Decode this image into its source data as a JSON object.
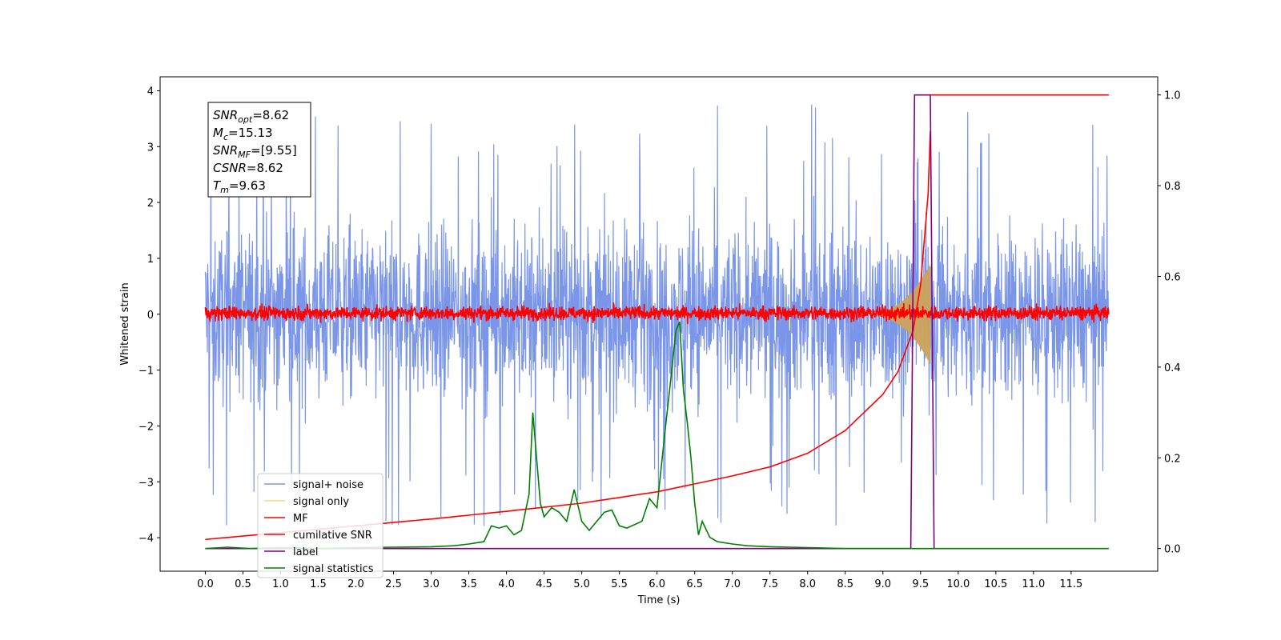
{
  "chart_data": {
    "type": "line",
    "xlabel": "Time (s)",
    "ylabel_left": "Whitened strain",
    "ylabel_right": "",
    "xlim": [
      -0.6,
      12.65
    ],
    "ylim_left": [
      -4.6,
      4.25
    ],
    "ylim_right": [
      -0.05,
      1.04
    ],
    "x_ticks": [
      "0.0",
      "0.5",
      "1.0",
      "1.5",
      "2.0",
      "2.5",
      "3.0",
      "3.5",
      "4.0",
      "4.5",
      "5.0",
      "5.5",
      "6.0",
      "6.5",
      "7.0",
      "7.5",
      "8.0",
      "8.5",
      "9.0",
      "9.5",
      "10.0",
      "10.5",
      "11.0",
      "11.5"
    ],
    "y_ticks_left": [
      "4",
      "3",
      "2",
      "1",
      "0",
      "−1",
      "−2",
      "−3",
      "−4"
    ],
    "y_ticks_right": [
      "1.0",
      "0.8",
      "0.6",
      "0.4",
      "0.2",
      "0.0"
    ],
    "grid": false,
    "annotation": {
      "lines": [
        {
          "main": "SNR",
          "sub": "opt",
          "value": "=8.62"
        },
        {
          "main": "M",
          "sub": "c",
          "value": "=15.13"
        },
        {
          "main": "SNR",
          "sub": "MF",
          "value": "=[9.55]"
        },
        {
          "main": "CSNR",
          "sub": "",
          "value": "=8.62"
        },
        {
          "main": "T",
          "sub": "m",
          "value": "=9.63"
        }
      ]
    },
    "legend": {
      "placement": "lower-left",
      "entries": [
        "signal+ noise",
        "signal only",
        "MF",
        "cumilative SNR",
        "label",
        "signal statistics"
      ]
    },
    "series": [
      {
        "name": "signal+ noise",
        "axis": "left",
        "color": "#7b96e8",
        "kind": "noise",
        "x_range": [
          0,
          12
        ],
        "amplitude": 1.8
      },
      {
        "name": "signal only",
        "axis": "left",
        "color": "#f5c842",
        "kind": "chirp",
        "x_range": [
          8.6,
          9.63
        ],
        "peak": 0.9
      },
      {
        "name": "MF",
        "axis": "left",
        "color": "#ff0000",
        "kind": "noise",
        "x_range": [
          0,
          12
        ],
        "amplitude": 0.15
      },
      {
        "name": "cumilative SNR",
        "axis": "right",
        "color": "#ff0000",
        "x": [
          0,
          1,
          2,
          3,
          4,
          5,
          6,
          7,
          7.5,
          8,
          8.5,
          9,
          9.2,
          9.4,
          9.5,
          9.6,
          9.63
        ],
        "y": [
          0.02,
          0.035,
          0.05,
          0.065,
          0.082,
          0.1,
          0.125,
          0.16,
          0.18,
          0.21,
          0.26,
          0.34,
          0.39,
          0.48,
          0.58,
          0.78,
          0.92
        ]
      },
      {
        "name": "label",
        "axis": "right",
        "color": "#800080",
        "x": [
          0,
          9.37,
          9.42,
          9.63,
          9.68
        ],
        "y": [
          0,
          0,
          1,
          1,
          0
        ]
      },
      {
        "name": "signal statistics",
        "axis": "right",
        "color": "#008000",
        "x": [
          0.0,
          0.3,
          0.6,
          1.0,
          1.5,
          2.0,
          2.5,
          3.0,
          3.3,
          3.5,
          3.7,
          3.8,
          3.9,
          4.0,
          4.1,
          4.2,
          4.3,
          4.35,
          4.4,
          4.45,
          4.5,
          4.6,
          4.7,
          4.8,
          4.9,
          5.0,
          5.1,
          5.2,
          5.3,
          5.4,
          5.5,
          5.6,
          5.8,
          5.9,
          6.0,
          6.1,
          6.2,
          6.25,
          6.3,
          6.35,
          6.4,
          6.45,
          6.5,
          6.55,
          6.6,
          6.7,
          6.8,
          7.0,
          7.2,
          7.5,
          8.0,
          8.5,
          9.0,
          9.5,
          10.0,
          11.0,
          12.0
        ],
        "y": [
          0.0,
          0.003,
          0.0,
          0.002,
          0.0,
          0.002,
          0.003,
          0.004,
          0.006,
          0.01,
          0.015,
          0.05,
          0.045,
          0.05,
          0.03,
          0.04,
          0.12,
          0.3,
          0.2,
          0.1,
          0.07,
          0.09,
          0.08,
          0.06,
          0.13,
          0.06,
          0.04,
          0.06,
          0.08,
          0.085,
          0.05,
          0.045,
          0.06,
          0.11,
          0.09,
          0.25,
          0.4,
          0.48,
          0.5,
          0.35,
          0.28,
          0.2,
          0.1,
          0.03,
          0.06,
          0.025,
          0.015,
          0.01,
          0.006,
          0.004,
          0.002,
          0.0,
          0.0,
          0.0,
          0.0,
          0.0,
          0.0
        ]
      }
    ]
  }
}
